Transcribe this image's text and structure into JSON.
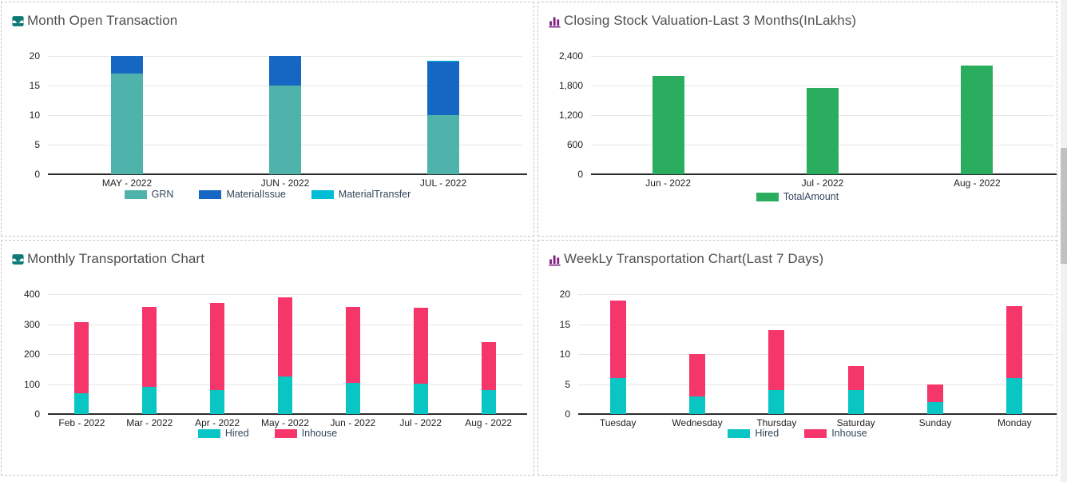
{
  "panels": [
    {
      "title": "Month Open Transaction",
      "icon": "inbox-icon"
    },
    {
      "title": "Closing Stock Valuation-Last 3 Months(InLakhs)",
      "icon": "bar-chart-icon"
    },
    {
      "title": "Monthly Transportation Chart",
      "icon": "inbox-icon"
    },
    {
      "title": "WeekLy Transportation Chart(Last 7 Days)",
      "icon": "bar-chart-icon"
    }
  ],
  "colors": {
    "icon_teal": "#0c7b78",
    "icon_purple": "#7f2182",
    "grn_teal": "#4fb3ab",
    "material_issue_blue": "#1667c4",
    "material_transfer_cyan": "#00bcd4",
    "total_amount_green": "#2bad5f",
    "hired_turquoise": "#09c6c4",
    "inhouse_pink": "#f5366b"
  },
  "chart_data": [
    {
      "type": "bar",
      "stacked": true,
      "title": "Month Open Transaction",
      "categories": [
        "MAY - 2022",
        "JUN - 2022",
        "JUL - 2022"
      ],
      "series": [
        {
          "name": "GRN",
          "color": "#4fb3ab",
          "values": [
            17,
            15,
            10
          ]
        },
        {
          "name": "MaterialIssue",
          "color": "#1667c4",
          "values": [
            3,
            5,
            9
          ]
        },
        {
          "name": "MaterialTransfer",
          "color": "#00bcd4",
          "values": [
            0,
            0,
            0.2
          ]
        }
      ],
      "ylim": [
        0,
        20
      ],
      "yticks": [
        0,
        5,
        10,
        15,
        20
      ],
      "ytick_labels": [
        "0",
        "5",
        "10",
        "15",
        "20"
      ],
      "grid": true,
      "legend_position": "bottom"
    },
    {
      "type": "bar",
      "stacked": false,
      "title": "Closing Stock Valuation-Last 3 Months(InLakhs)",
      "categories": [
        "Jun - 2022",
        "Jul - 2022",
        "Aug - 2022"
      ],
      "series": [
        {
          "name": "TotalAmount",
          "color": "#2bad5f",
          "values": [
            2000,
            1750,
            2200
          ]
        }
      ],
      "ylim": [
        0,
        2400
      ],
      "yticks": [
        0,
        600,
        1200,
        1800,
        2400
      ],
      "ytick_labels": [
        "0",
        "600",
        "1,200",
        "1,800",
        "2,400"
      ],
      "grid": true,
      "legend_position": "bottom"
    },
    {
      "type": "bar",
      "stacked": true,
      "title": "Monthly Transportation Chart",
      "categories": [
        "Feb - 2022",
        "Mar - 2022",
        "Apr - 2022",
        "May - 2022",
        "Jun - 2022",
        "Jul - 2022",
        "Aug - 2022"
      ],
      "series": [
        {
          "name": "Hired",
          "color": "#09c6c4",
          "values": [
            70,
            90,
            80,
            125,
            105,
            102,
            80
          ]
        },
        {
          "name": "Inhouse",
          "color": "#f5366b",
          "values": [
            237,
            268,
            292,
            265,
            253,
            253,
            161
          ]
        }
      ],
      "ylim": [
        0,
        400
      ],
      "yticks": [
        0,
        100,
        200,
        300,
        400
      ],
      "ytick_labels": [
        "0",
        "100",
        "200",
        "300",
        "400"
      ],
      "grid": true,
      "legend_position": "bottom"
    },
    {
      "type": "bar",
      "stacked": true,
      "title": "WeekLy Transportation Chart(Last 7 Days)",
      "categories": [
        "Tuesday",
        "Wednesday",
        "Thursday",
        "Saturday",
        "Sunday",
        "Monday"
      ],
      "series": [
        {
          "name": "Hired",
          "color": "#09c6c4",
          "values": [
            6,
            3,
            4,
            4,
            2,
            6
          ]
        },
        {
          "name": "Inhouse",
          "color": "#f5366b",
          "values": [
            13,
            7,
            10,
            4,
            3,
            12
          ]
        }
      ],
      "ylim": [
        0,
        20
      ],
      "yticks": [
        0,
        5,
        10,
        15,
        20
      ],
      "ytick_labels": [
        "0",
        "5",
        "10",
        "15",
        "20"
      ],
      "grid": true,
      "legend_position": "bottom"
    }
  ]
}
